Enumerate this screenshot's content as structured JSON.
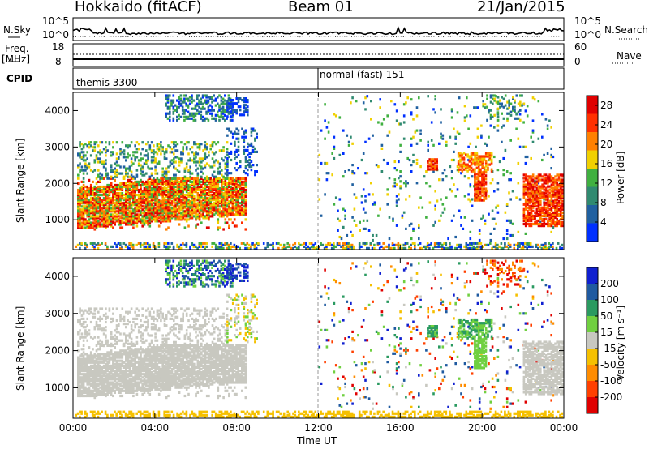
{
  "header": {
    "station": "Hokkaido (fitACF)",
    "beam": "Beam 01",
    "date": "21/Jan/2015"
  },
  "labels": {
    "nsky": "N.Sky",
    "nsearch": "N.Search",
    "freq": "Freq.",
    "mhz": "[MHz]",
    "nave": "Nave",
    "cpid": "CPID",
    "range_axis": "Slant Range [km]",
    "time_axis": "Time UT",
    "power_bar": "Power [dB]",
    "velocity_bar": "Velocity [m s⁻¹]"
  },
  "noise_panel": {
    "left_ticks": [
      "10^5",
      "10^0"
    ],
    "right_ticks": [
      "10^5",
      "10^0"
    ]
  },
  "freq_panel": {
    "left_ticks": [
      "18",
      "8"
    ],
    "right_ticks": [
      "60",
      "0"
    ]
  },
  "cpid_panel": {
    "modes": [
      {
        "label": "themis 3300",
        "start_hour": 0
      },
      {
        "label": "normal (fast) 151",
        "start_hour": 12
      }
    ]
  },
  "chart_data": {
    "type": "heatmap",
    "x_ticks": [
      "00:00",
      "04:00",
      "08:00",
      "12:00",
      "16:00",
      "20:00",
      "00:00"
    ],
    "x_range_hours": [
      0,
      24
    ],
    "y_ticks": [
      1000,
      2000,
      3000,
      4000
    ],
    "y_range_km": [
      180,
      4500
    ],
    "power_scale": {
      "ticks": [
        4,
        8,
        12,
        16,
        20,
        24,
        28
      ],
      "range": [
        0,
        30
      ],
      "colors": [
        "#0030ff",
        "#2060a0",
        "#308a70",
        "#40b040",
        "#f0d000",
        "#ff8000",
        "#ff3000",
        "#e00000"
      ]
    },
    "velocity_scale": {
      "ticks": [
        -200,
        -100,
        -50,
        -15,
        15,
        50,
        100,
        200
      ],
      "colors": [
        "#e00000",
        "#ff4000",
        "#ff8c00",
        "#f5c000",
        "#c8c8c0",
        "#70d040",
        "#2a9a60",
        "#1f5aa0",
        "#1020d0"
      ]
    }
  }
}
